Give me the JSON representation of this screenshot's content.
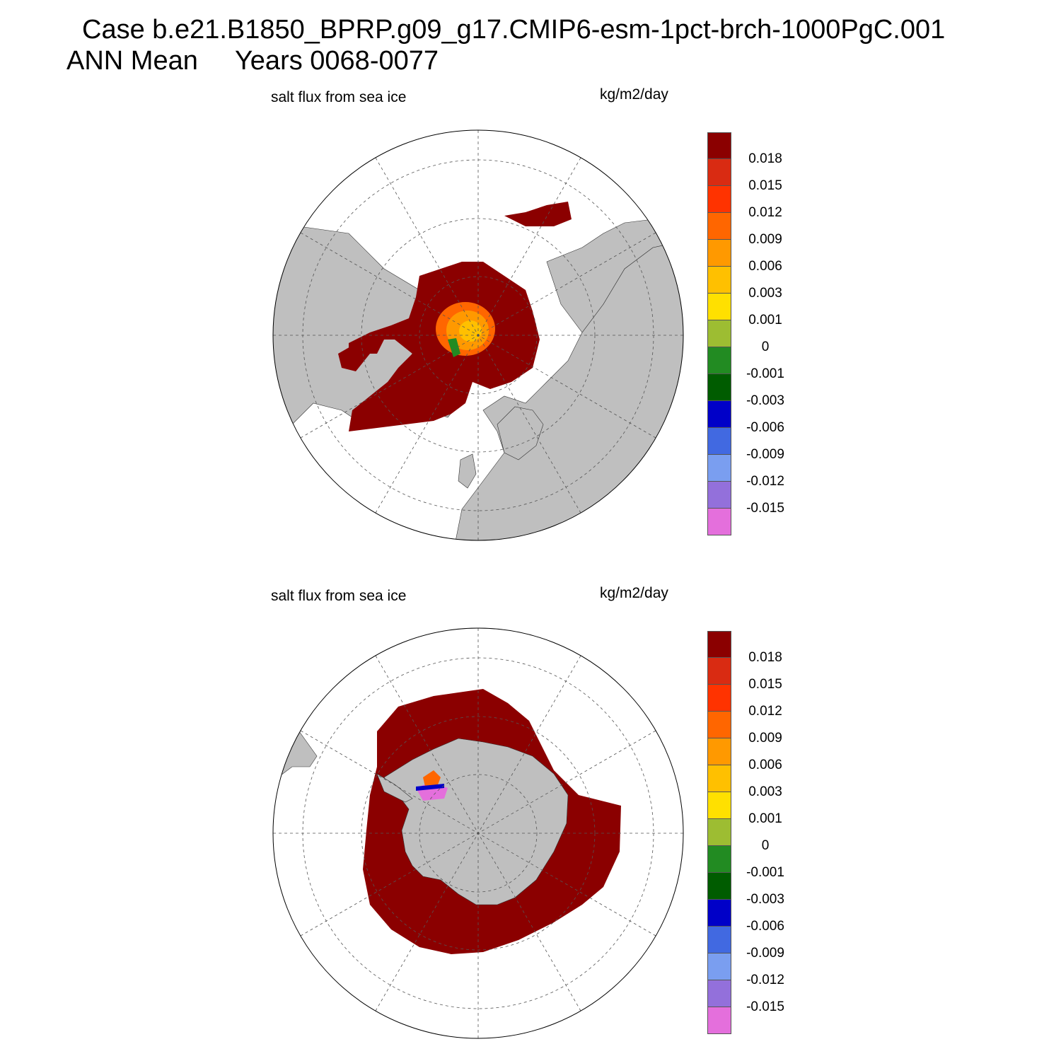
{
  "figure": {
    "title_line_1": "Case b.e21.B1850_BPRP.g09_g17.CMIP6-esm-1pct-brch-1000PgC.001",
    "title_line_2": "ANN Mean     Years 0068-0077"
  },
  "panels": [
    {
      "left_label": "salt flux from sea ice",
      "right_label": "kg/m2/day",
      "hemisphere": "north"
    },
    {
      "left_label": "salt flux from sea ice",
      "right_label": "kg/m2/day",
      "hemisphere": "south"
    }
  ],
  "colorbar": {
    "colors": [
      "#8b0000",
      "#d92b12",
      "#ff3300",
      "#ff6600",
      "#ff9900",
      "#ffc000",
      "#ffe000",
      "#9dbd32",
      "#228b22",
      "#005c00",
      "#0000c8",
      "#4169e1",
      "#7a9ef0",
      "#9370db",
      "#e46fdc"
    ],
    "labels": [
      "0.018",
      "0.015",
      "0.012",
      "0.009",
      "0.006",
      "0.003",
      "0.001",
      "0",
      "-0.001",
      "-0.003",
      "-0.006",
      "-0.009",
      "-0.012",
      "-0.015"
    ]
  },
  "colors": {
    "land": "#bfbfbf",
    "ice_dark_red": "#8b0000",
    "grid": "#555555"
  }
}
